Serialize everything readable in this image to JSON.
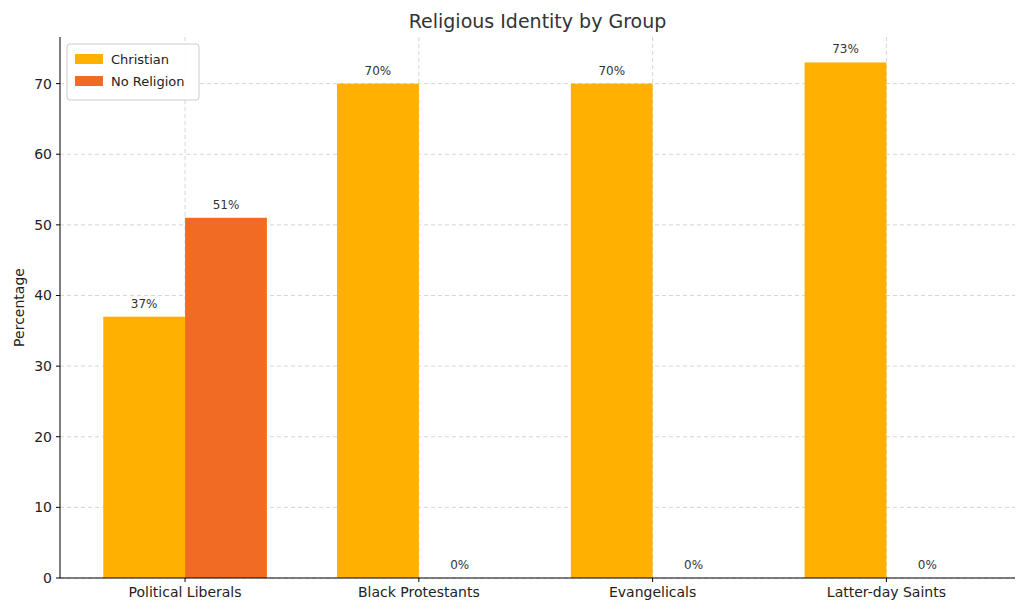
{
  "chart_data": {
    "type": "bar",
    "title": "Religious Identity by Group",
    "y_label": "Percentage",
    "categories": [
      "Political Liberals",
      "Black Protestants",
      "Evangelicals",
      "Latter-day Saints"
    ],
    "series": [
      {
        "name": "Christian",
        "color": "#ffb000",
        "values": [
          37,
          70,
          70,
          73
        ],
        "value_labels": [
          "37%",
          "70%",
          "70%",
          "73%"
        ]
      },
      {
        "name": "No Religion",
        "color": "#f26b22",
        "values": [
          51,
          0,
          0,
          0
        ],
        "value_labels": [
          "51%",
          "0%",
          "0%",
          "0%"
        ]
      }
    ],
    "ylim": [
      0,
      76.6
    ],
    "yticks": [
      0,
      10,
      20,
      30,
      40,
      50,
      60,
      70
    ],
    "grid": true,
    "legend": "upper left",
    "data_labels": true
  }
}
